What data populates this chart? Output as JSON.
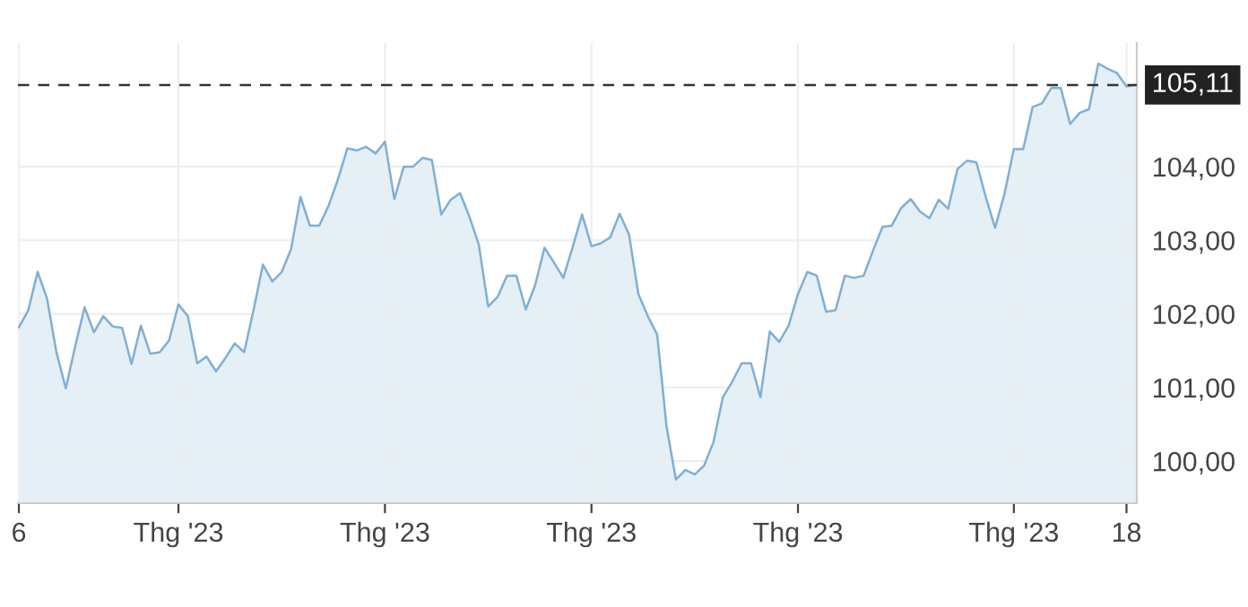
{
  "chart_data": {
    "type": "area",
    "ylim": [
      99.43,
      105.68
    ],
    "categories": [
      "6",
      null,
      null,
      null,
      null,
      null,
      null,
      null,
      null,
      null,
      null,
      null,
      null,
      null,
      null,
      null,
      null,
      "Thg '23",
      null,
      null,
      null,
      null,
      null,
      null,
      null,
      null,
      null,
      null,
      null,
      null,
      null,
      null,
      null,
      null,
      null,
      null,
      null,
      null,
      null,
      "Thg '23",
      null,
      null,
      null,
      null,
      null,
      null,
      null,
      null,
      null,
      null,
      null,
      null,
      null,
      null,
      null,
      null,
      null,
      null,
      null,
      null,
      null,
      "Thg '23",
      null,
      null,
      null,
      null,
      null,
      null,
      null,
      null,
      null,
      null,
      null,
      null,
      null,
      null,
      null,
      null,
      null,
      null,
      null,
      null,
      null,
      "Thg '23",
      null,
      null,
      null,
      null,
      null,
      null,
      null,
      null,
      null,
      null,
      null,
      null,
      null,
      null,
      null,
      null,
      null,
      null,
      null,
      null,
      null,
      null,
      "Thg '23",
      null,
      null,
      null,
      null,
      null,
      null,
      null,
      null,
      null,
      null,
      null,
      "18",
      null
    ],
    "yticks": [
      {
        "value": 100,
        "label": "100,00"
      },
      {
        "value": 101,
        "label": "101,00"
      },
      {
        "value": 102,
        "label": "102,00"
      },
      {
        "value": 103,
        "label": "103,00"
      },
      {
        "value": 104,
        "label": "104,00"
      }
    ],
    "grid": true,
    "ref_lines": [
      {
        "axis": "y",
        "value": 105.11,
        "label": "105,11",
        "color": "#333333",
        "line_style": "dashed"
      }
    ],
    "series": [
      {
        "color": "#7fafd4",
        "values": [
          101.82,
          102.05,
          102.57,
          102.21,
          101.48,
          100.99,
          101.56,
          102.09,
          101.75,
          101.97,
          101.83,
          101.81,
          101.32,
          101.84,
          101.46,
          101.48,
          101.64,
          102.13,
          101.97,
          101.33,
          101.42,
          101.22,
          101.4,
          101.6,
          101.48,
          102.05,
          102.67,
          102.44,
          102.57,
          102.88,
          103.59,
          103.2,
          103.2,
          103.47,
          103.83,
          104.25,
          104.22,
          104.27,
          104.18,
          104.34,
          103.56,
          104.0,
          104.0,
          104.12,
          104.09,
          103.35,
          103.55,
          103.64,
          103.32,
          102.94,
          102.1,
          102.23,
          102.52,
          102.52,
          102.06,
          102.39,
          102.9,
          102.7,
          102.49,
          102.91,
          103.35,
          102.92,
          102.96,
          103.04,
          103.36,
          103.08,
          102.27,
          101.97,
          101.72,
          100.47,
          99.75,
          99.88,
          99.82,
          99.94,
          100.26,
          100.87,
          101.08,
          101.33,
          101.33,
          100.87,
          101.76,
          101.62,
          101.84,
          102.27,
          102.57,
          102.52,
          102.03,
          102.05,
          102.52,
          102.49,
          102.52,
          102.86,
          103.18,
          103.2,
          103.44,
          103.56,
          103.39,
          103.3,
          103.55,
          103.43,
          103.97,
          104.08,
          104.06,
          103.59,
          103.17,
          103.63,
          104.24,
          104.24,
          104.81,
          104.86,
          105.07,
          105.07,
          104.58,
          104.73,
          104.78,
          105.4,
          105.33,
          105.27,
          105.09,
          105.11
        ]
      }
    ]
  }
}
